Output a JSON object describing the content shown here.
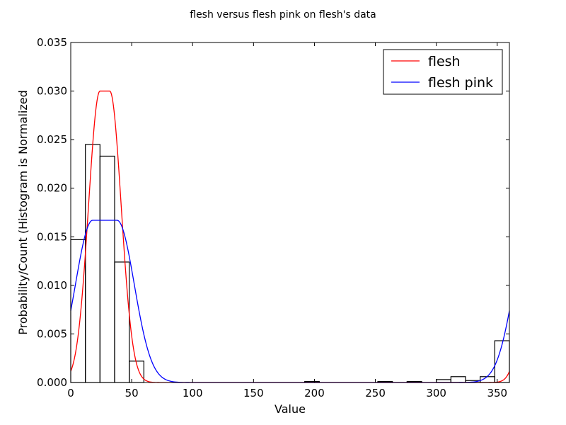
{
  "chart_data": {
    "type": "histogram",
    "title": "flesh versus flesh pink on flesh's data",
    "xlabel": "Value",
    "ylabel": "Probability/Count (Histogram is Normalized",
    "xlim": [
      0,
      360
    ],
    "ylim": [
      0,
      0.035
    ],
    "xticks": [
      0,
      50,
      100,
      150,
      200,
      250,
      300,
      350
    ],
    "xtick_labels": [
      "0",
      "50",
      "100",
      "150",
      "200",
      "250",
      "300",
      "350"
    ],
    "yticks": [
      0,
      0.005,
      0.01,
      0.015,
      0.02,
      0.025,
      0.03,
      0.035
    ],
    "ytick_labels": [
      "0.000",
      "0.005",
      "0.010",
      "0.015",
      "0.020",
      "0.025",
      "0.030",
      "0.035"
    ],
    "grid": false,
    "legend_position": "top-right",
    "histogram": {
      "bin_width": 12,
      "bin_starts": [
        0,
        12,
        24,
        36,
        48,
        60,
        72,
        84,
        96,
        108,
        120,
        132,
        144,
        156,
        168,
        180,
        192,
        204,
        216,
        228,
        240,
        252,
        264,
        276,
        288,
        300,
        312,
        324,
        336,
        348
      ],
      "values": [
        0.0147,
        0.0245,
        0.0233,
        0.0124,
        0.0022,
        0,
        0,
        0,
        0,
        0,
        0,
        0,
        0,
        0,
        0,
        0,
        0.0001,
        0,
        0,
        0,
        0,
        0.0001,
        0,
        0.0001,
        0,
        0.0003,
        0.0006,
        0.0002,
        0.0006,
        0.0043
      ],
      "edge_color": "#000000"
    },
    "series": [
      {
        "name": "flesh",
        "color": "#ff0000",
        "curve": {
          "center": 28,
          "plateau": 4,
          "sigma": 9.4,
          "peak": 0.03,
          "period": 360
        }
      },
      {
        "name": "flesh pink",
        "color": "#0000ff",
        "curve": {
          "center": 28,
          "plateau": 10,
          "sigma": 14.1,
          "peak": 0.0167,
          "period": 360
        }
      }
    ]
  }
}
